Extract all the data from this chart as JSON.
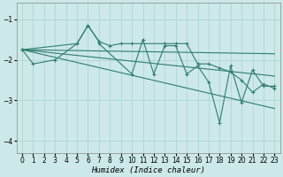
{
  "xlabel": "Humidex (Indice chaleur)",
  "ylabel": "",
  "bg_color": "#cce8e8",
  "line_color": "#2e7d6e",
  "grid_color": "#aad0d0",
  "xlim": [
    -0.5,
    23.5
  ],
  "ylim": [
    -4.3,
    -0.6
  ],
  "yticks": [
    -4,
    -3,
    -2,
    -1
  ],
  "xticks": [
    0,
    1,
    2,
    3,
    4,
    5,
    6,
    7,
    8,
    9,
    10,
    11,
    12,
    13,
    14,
    15,
    16,
    17,
    18,
    19,
    20,
    21,
    22,
    23
  ],
  "line1_x": [
    0,
    1,
    3,
    5,
    6,
    7,
    7,
    10,
    11,
    12,
    13,
    14,
    15,
    16,
    17,
    18,
    19,
    20,
    21,
    22,
    23
  ],
  "line1_y": [
    -1.75,
    -2.1,
    -2.0,
    -1.6,
    -1.15,
    -1.55,
    -1.6,
    -2.35,
    -1.5,
    -2.35,
    -1.65,
    -1.65,
    -2.35,
    -2.15,
    -2.55,
    -3.55,
    -2.15,
    -3.05,
    -2.25,
    -2.65,
    -2.65
  ],
  "line2_x": [
    0,
    5,
    6,
    7,
    8,
    9,
    10,
    13,
    14,
    15,
    16,
    17,
    18,
    19,
    20,
    21,
    22,
    23
  ],
  "line2_y": [
    -1.75,
    -1.6,
    -1.15,
    -1.55,
    -1.65,
    -1.6,
    -1.6,
    -1.6,
    -1.6,
    -1.6,
    -2.1,
    -2.1,
    -2.2,
    -2.3,
    -2.5,
    -2.8,
    -2.6,
    -2.7
  ],
  "trend1_x": [
    0,
    23
  ],
  "trend1_y": [
    -1.75,
    -1.85
  ],
  "trend2_x": [
    0,
    23
  ],
  "trend2_y": [
    -1.75,
    -2.4
  ],
  "trend3_x": [
    0,
    23
  ],
  "trend3_y": [
    -1.75,
    -3.2
  ]
}
